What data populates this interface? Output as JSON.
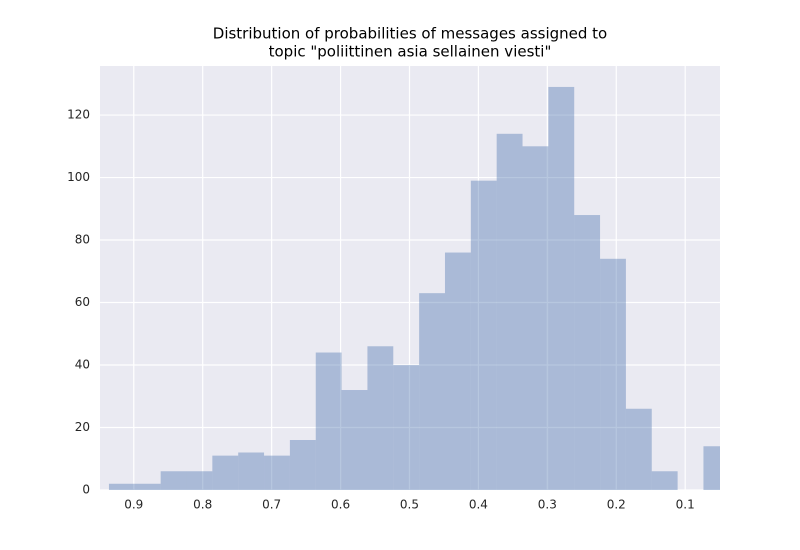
{
  "chart_data": {
    "type": "histogram",
    "title": [
      "Distribution of probabilities of messages assigned to",
      "topic \"poliittinen asia sellainen viesti\""
    ],
    "bins": [
      0.936,
      0.8985,
      0.861,
      0.8235,
      0.786,
      0.7485,
      0.711,
      0.6735,
      0.636,
      0.5985,
      0.561,
      0.5235,
      0.486,
      0.4485,
      0.411,
      0.3735,
      0.336,
      0.2985,
      0.261,
      0.2235,
      0.186,
      0.1485,
      0.111,
      0.0735,
      0.036
    ],
    "values": [
      2,
      2,
      6,
      6,
      11,
      12,
      11,
      16,
      44,
      32,
      46,
      40,
      63,
      76,
      99,
      114,
      110,
      129,
      88,
      74,
      26,
      6,
      0,
      14
    ],
    "color": "#4c72b0",
    "alpha": 0.4,
    "xlim": [
      0.949,
      0.0495
    ],
    "xticks": [
      0.9,
      0.8,
      0.7,
      0.6,
      0.5,
      0.4,
      0.3,
      0.2,
      0.1
    ],
    "ylim": [
      0,
      135.7
    ],
    "yticks": [
      0,
      20,
      40,
      60,
      80,
      100,
      120
    ],
    "grid": true
  }
}
